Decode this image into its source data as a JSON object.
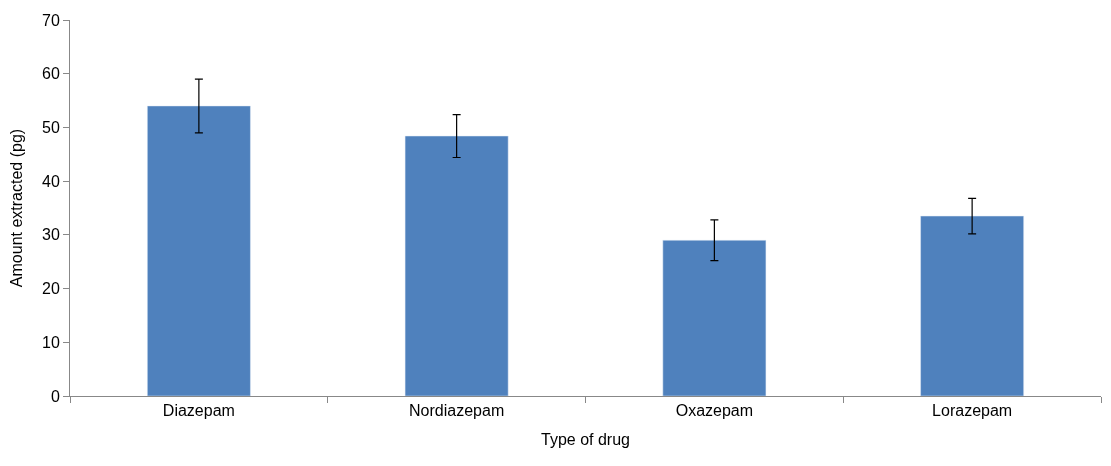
{
  "chart_data": {
    "type": "bar",
    "xlabel": "Type of drug",
    "ylabel": "Amount extracted (pg)",
    "categories": [
      "Diazepam",
      "Nordiazepam",
      "Oxazepam",
      "Lorazepam"
    ],
    "values": [
      54,
      48.4,
      29,
      33.5
    ],
    "errors": [
      5,
      4,
      3.8,
      3.3
    ],
    "color": "#4f81bd",
    "ylim": [
      0,
      70
    ],
    "yticks": [
      0,
      10,
      20,
      30,
      40,
      50,
      60,
      70
    ]
  }
}
